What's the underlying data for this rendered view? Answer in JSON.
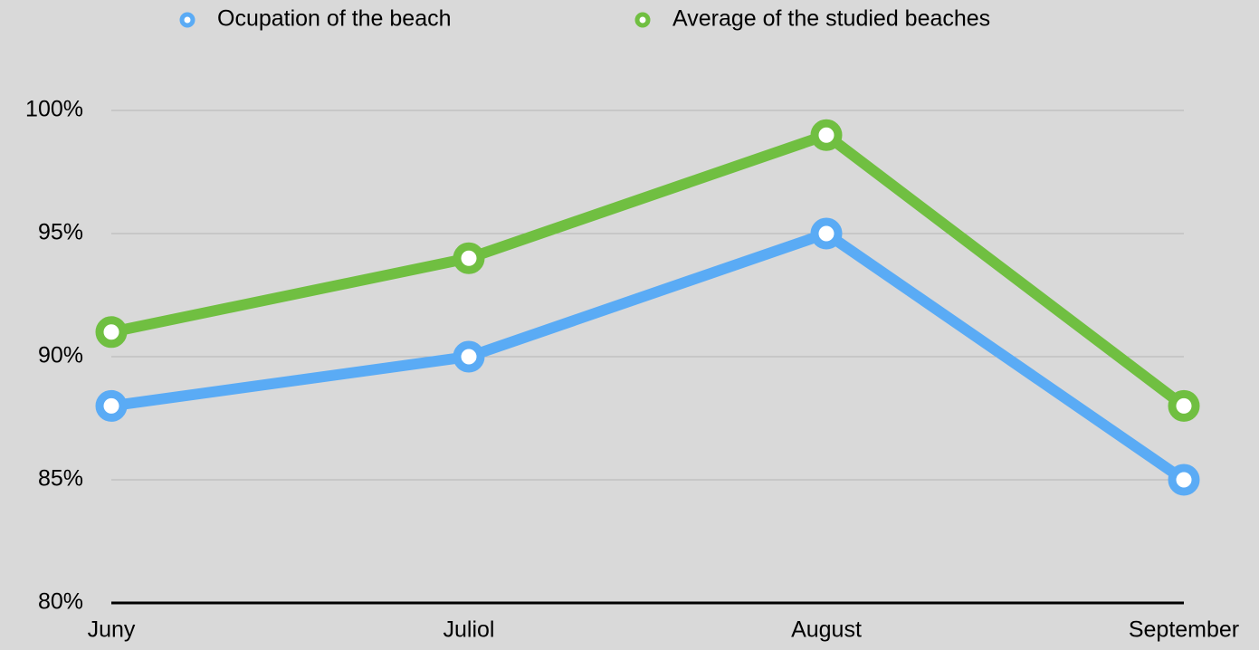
{
  "chart_data": {
    "type": "line",
    "categories": [
      "Juny",
      "Juliol",
      "August",
      "September"
    ],
    "series": [
      {
        "name": "Ocupation of the beach",
        "color": "#5aabf5",
        "values": [
          88,
          90,
          95,
          85
        ]
      },
      {
        "name": "Average of the studied beaches",
        "color": "#70bf41",
        "values": [
          91,
          94,
          99,
          88
        ]
      }
    ],
    "ylim": [
      80,
      100
    ],
    "yticks": [
      {
        "value": 80,
        "label": "80%"
      },
      {
        "value": 85,
        "label": "85%"
      },
      {
        "value": 90,
        "label": "90%"
      },
      {
        "value": 95,
        "label": "95%"
      },
      {
        "value": 100,
        "label": "100%"
      }
    ],
    "grid": true,
    "legend": "top"
  }
}
